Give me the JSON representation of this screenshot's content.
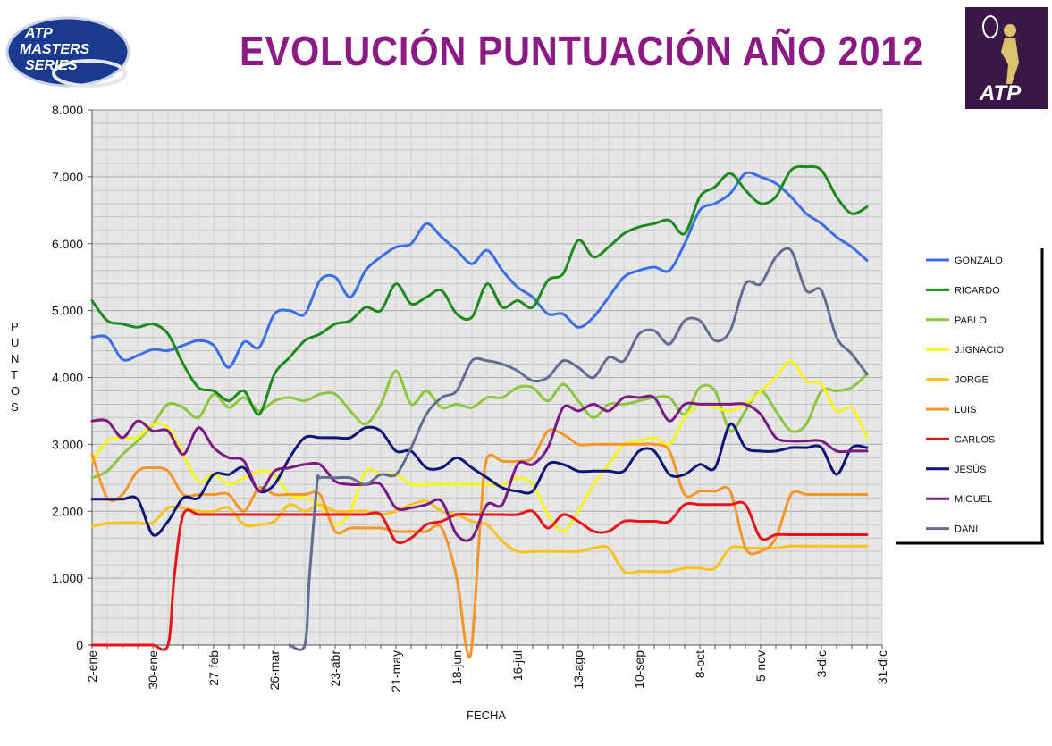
{
  "chart_data": {
    "type": "line",
    "title": "EVOLUCIÓN PUNTUACIÓN AÑO 2012",
    "xlabel": "FECHA",
    "ylabel": "PUNTOS",
    "ylim": [
      0,
      8000
    ],
    "yticks": [
      0,
      1000,
      2000,
      3000,
      4000,
      5000,
      6000,
      7000,
      8000
    ],
    "ytick_labels": [
      "0",
      "1.000",
      "2.000",
      "3.000",
      "4.000",
      "5.000",
      "6.000",
      "7.000",
      "8.000"
    ],
    "xlim": [
      0,
      52
    ],
    "categories": [
      "2-ene",
      "30-ene",
      "27-feb",
      "26-mar",
      "23-abr",
      "21-may",
      "18-jun",
      "16-jul",
      "13-ago",
      "10-sep",
      "8-oct",
      "5-nov",
      "3-dic",
      "31-dic"
    ],
    "grid": true,
    "legend_position": "right",
    "series": [
      {
        "name": "GONZALO",
        "color": "#3a6fe8",
        "x": [
          0,
          1,
          2,
          3,
          4,
          5,
          6,
          7,
          8,
          9,
          10,
          11,
          12,
          13,
          14,
          15,
          16,
          17,
          18,
          19,
          20,
          21,
          22,
          23,
          24,
          25,
          26,
          27,
          28,
          29,
          30,
          31,
          32,
          33,
          34,
          35,
          36,
          37,
          38,
          39,
          40,
          41,
          42,
          43,
          44,
          45,
          46,
          47,
          48,
          49,
          50,
          51
        ],
        "values": [
          4600,
          4600,
          4270,
          4330,
          4420,
          4400,
          4480,
          4550,
          4480,
          4150,
          4530,
          4450,
          4950,
          5000,
          4950,
          5450,
          5500,
          5200,
          5600,
          5800,
          5950,
          6000,
          6300,
          6100,
          5900,
          5700,
          5900,
          5600,
          5350,
          5200,
          4950,
          4950,
          4750,
          4900,
          5200,
          5500,
          5600,
          5650,
          5600,
          6000,
          6500,
          6600,
          6750,
          7050,
          7000,
          6900,
          6700,
          6450,
          6300,
          6100,
          5950,
          5750
        ]
      },
      {
        "name": "RICARDO",
        "color": "#1e8a1e",
        "x": [
          0,
          1,
          2,
          3,
          4,
          5,
          6,
          7,
          8,
          9,
          10,
          11,
          12,
          13,
          14,
          15,
          16,
          17,
          18,
          19,
          20,
          21,
          22,
          23,
          24,
          25,
          26,
          27,
          28,
          29,
          30,
          31,
          32,
          33,
          34,
          35,
          36,
          37,
          38,
          39,
          40,
          41,
          42,
          43,
          44,
          45,
          46,
          47,
          48,
          49,
          50,
          51
        ],
        "values": [
          5150,
          4850,
          4800,
          4750,
          4800,
          4650,
          4200,
          3850,
          3800,
          3650,
          3800,
          3450,
          4050,
          4300,
          4550,
          4650,
          4800,
          4850,
          5050,
          5000,
          5400,
          5100,
          5200,
          5300,
          4950,
          4900,
          5400,
          5050,
          5150,
          5050,
          5450,
          5550,
          6050,
          5800,
          5950,
          6150,
          6250,
          6300,
          6350,
          6150,
          6700,
          6850,
          7050,
          6800,
          6600,
          6700,
          7100,
          7150,
          7100,
          6700,
          6450,
          6550
        ]
      },
      {
        "name": "PABLO",
        "color": "#8cc63e",
        "x": [
          0,
          1,
          2,
          3,
          4,
          5,
          6,
          7,
          8,
          9,
          10,
          11,
          12,
          13,
          14,
          15,
          16,
          17,
          18,
          19,
          20,
          21,
          22,
          23,
          24,
          25,
          26,
          27,
          28,
          29,
          30,
          31,
          32,
          33,
          34,
          35,
          36,
          37,
          38,
          39,
          40,
          41,
          42,
          43,
          44,
          45,
          46,
          47,
          48,
          49,
          50,
          51
        ],
        "values": [
          2500,
          2600,
          2850,
          3050,
          3300,
          3600,
          3550,
          3400,
          3750,
          3550,
          3700,
          3500,
          3650,
          3700,
          3650,
          3750,
          3750,
          3500,
          3300,
          3600,
          4100,
          3600,
          3800,
          3550,
          3600,
          3550,
          3700,
          3700,
          3850,
          3850,
          3650,
          3900,
          3650,
          3400,
          3600,
          3600,
          3650,
          3700,
          3700,
          3450,
          3850,
          3800,
          3200,
          3500,
          3800,
          3500,
          3200,
          3300,
          3800,
          3800,
          3850,
          4050
        ]
      },
      {
        "name": "J.IGNACIO",
        "color": "#f5f51e",
        "x": [
          0,
          1,
          2,
          3,
          4,
          5,
          6,
          7,
          8,
          9,
          10,
          11,
          12,
          13,
          14,
          15,
          16,
          17,
          18,
          19,
          20,
          21,
          22,
          23,
          24,
          25,
          26,
          27,
          28,
          29,
          30,
          31,
          32,
          33,
          34,
          35,
          36,
          37,
          38,
          39,
          40,
          41,
          42,
          43,
          44,
          45,
          46,
          47,
          48,
          49,
          50,
          51
        ],
        "values": [
          2750,
          3050,
          3100,
          3100,
          3300,
          3250,
          2850,
          2450,
          2550,
          2400,
          2500,
          2600,
          2550,
          2250,
          2200,
          2100,
          1800,
          2000,
          2600,
          2550,
          2550,
          2400,
          2400,
          2400,
          2400,
          2400,
          2400,
          2400,
          2500,
          2400,
          1950,
          1700,
          2000,
          2400,
          2700,
          3000,
          3050,
          3100,
          3000,
          3400,
          3600,
          3550,
          3500,
          3600,
          3800,
          4000,
          4250,
          3950,
          3900,
          3500,
          3550,
          3100
        ]
      },
      {
        "name": "JORGE",
        "color": "#f7c21b",
        "x": [
          0,
          1,
          2,
          3,
          4,
          5,
          6,
          7,
          8,
          9,
          10,
          11,
          12,
          13,
          14,
          15,
          16,
          17,
          18,
          19,
          20,
          21,
          22,
          23,
          24,
          25,
          26,
          27,
          28,
          29,
          30,
          31,
          32,
          33,
          34,
          35,
          36,
          37,
          38,
          39,
          40,
          41,
          42,
          43,
          44,
          45,
          46,
          47,
          48,
          49,
          50,
          51
        ],
        "values": [
          1780,
          1820,
          1830,
          1830,
          1830,
          2050,
          2050,
          2000,
          2000,
          2050,
          1800,
          1800,
          1850,
          2100,
          2000,
          2100,
          2000,
          2000,
          2000,
          1950,
          2000,
          2100,
          2150,
          2000,
          1950,
          1850,
          1800,
          1550,
          1400,
          1400,
          1400,
          1400,
          1400,
          1450,
          1450,
          1100,
          1100,
          1100,
          1100,
          1150,
          1150,
          1150,
          1450,
          1450,
          1450,
          1450,
          1480,
          1480,
          1480,
          1480,
          1480,
          1480
        ]
      },
      {
        "name": "LUIS",
        "color": "#f4962a",
        "x": [
          0,
          1,
          2,
          3,
          4,
          5,
          6,
          7,
          8,
          9,
          10,
          11,
          12,
          13,
          14,
          15,
          16,
          17,
          18,
          19,
          20,
          21,
          22,
          23,
          24,
          24.6,
          25,
          25.6,
          26,
          27,
          28,
          29,
          30,
          31,
          32,
          33,
          34,
          35,
          36,
          37,
          38,
          39,
          40,
          41,
          42,
          43,
          44,
          45,
          46,
          47,
          48,
          49,
          50,
          51
        ],
        "values": [
          2850,
          2200,
          2250,
          2600,
          2650,
          2600,
          2250,
          2250,
          2250,
          2250,
          2000,
          2350,
          2250,
          2250,
          2250,
          2250,
          1700,
          1750,
          1750,
          1750,
          1700,
          1700,
          1700,
          1750,
          1000,
          0,
          0,
          2000,
          2800,
          2750,
          2750,
          2800,
          3200,
          3150,
          3000,
          3000,
          3000,
          3000,
          3000,
          3000,
          2900,
          2250,
          2300,
          2300,
          2300,
          1450,
          1400,
          1600,
          2250,
          2250,
          2250,
          2250,
          2250,
          2250
        ]
      },
      {
        "name": "CARLOS",
        "color": "#e8141a",
        "x": [
          0,
          1,
          2,
          3,
          4,
          5,
          5.4,
          6,
          7,
          8,
          9,
          10,
          11,
          12,
          13,
          14,
          15,
          16,
          17,
          18,
          19,
          20,
          21,
          22,
          23,
          24,
          25,
          26,
          27,
          28,
          29,
          30,
          31,
          32,
          33,
          34,
          35,
          36,
          37,
          38,
          39,
          40,
          41,
          42,
          43,
          44,
          45,
          46,
          47,
          48,
          49,
          50,
          51
        ],
        "values": [
          0,
          0,
          0,
          0,
          0,
          0,
          1000,
          1950,
          1950,
          1950,
          1950,
          1950,
          1950,
          1950,
          1950,
          1950,
          1950,
          1950,
          1950,
          1950,
          1950,
          1550,
          1600,
          1800,
          1850,
          1950,
          1950,
          1950,
          1950,
          1950,
          2000,
          1750,
          1950,
          1850,
          1700,
          1700,
          1850,
          1850,
          1850,
          1850,
          2100,
          2100,
          2100,
          2100,
          2100,
          1600,
          1650,
          1650,
          1650,
          1650,
          1650,
          1650,
          1650
        ]
      },
      {
        "name": "JESÚS",
        "color": "#0d1577",
        "x": [
          0,
          1,
          2,
          3,
          4,
          5,
          6,
          7,
          8,
          9,
          10,
          11,
          12,
          13,
          14,
          15,
          16,
          17,
          18,
          19,
          20,
          21,
          22,
          23,
          24,
          25,
          26,
          27,
          28,
          29,
          30,
          31,
          32,
          33,
          34,
          35,
          36,
          37,
          38,
          39,
          40,
          41,
          42,
          43,
          44,
          45,
          46,
          47,
          48,
          49,
          50,
          51
        ],
        "values": [
          2180,
          2180,
          2180,
          2180,
          1650,
          1850,
          2200,
          2200,
          2550,
          2550,
          2650,
          2300,
          2400,
          2800,
          3100,
          3100,
          3100,
          3100,
          3250,
          3200,
          2900,
          2900,
          2650,
          2650,
          2800,
          2650,
          2500,
          2350,
          2300,
          2300,
          2700,
          2700,
          2600,
          2600,
          2600,
          2600,
          2900,
          2900,
          2550,
          2550,
          2700,
          2650,
          3300,
          2950,
          2900,
          2900,
          2950,
          2950,
          2950,
          2550,
          2950,
          2950
        ]
      },
      {
        "name": "MIGUEL",
        "color": "#7b1a85",
        "x": [
          0,
          1,
          2,
          3,
          4,
          5,
          6,
          7,
          8,
          9,
          10,
          11,
          12,
          13,
          14,
          15,
          16,
          17,
          18,
          19,
          20,
          21,
          22,
          23,
          24,
          25,
          26,
          27,
          28,
          29,
          30,
          31,
          32,
          33,
          34,
          35,
          36,
          37,
          38,
          39,
          40,
          41,
          42,
          43,
          44,
          45,
          46,
          47,
          48,
          49,
          50,
          51
        ],
        "values": [
          3350,
          3350,
          3100,
          3350,
          3200,
          3200,
          2850,
          3250,
          2950,
          2800,
          2750,
          2300,
          2600,
          2650,
          2700,
          2700,
          2450,
          2400,
          2400,
          2400,
          2050,
          2050,
          2100,
          2150,
          1650,
          1600,
          2100,
          2100,
          2700,
          2700,
          2950,
          3550,
          3500,
          3600,
          3500,
          3700,
          3700,
          3700,
          3350,
          3600,
          3600,
          3600,
          3600,
          3600,
          3450,
          3100,
          3050,
          3050,
          3050,
          2900,
          2900,
          2900
        ]
      },
      {
        "name": "DANI",
        "color": "#666b91",
        "x": [
          13,
          14,
          14.3,
          14.8,
          15,
          16,
          17,
          18,
          19,
          20,
          21,
          22,
          23,
          24,
          25,
          26,
          27,
          28,
          29,
          30,
          31,
          32,
          33,
          34,
          35,
          36,
          37,
          38,
          39,
          40,
          41,
          42,
          43,
          44,
          45,
          46,
          47,
          48,
          49,
          50,
          51
        ],
        "values": [
          0,
          0,
          1000,
          2400,
          2500,
          2500,
          2500,
          2400,
          2550,
          2550,
          2950,
          3450,
          3700,
          3800,
          4250,
          4250,
          4200,
          4100,
          3950,
          4000,
          4250,
          4150,
          4000,
          4300,
          4250,
          4650,
          4700,
          4500,
          4850,
          4850,
          4550,
          4700,
          5400,
          5400,
          5800,
          5900,
          5300,
          5300,
          4600,
          4350,
          4050
        ]
      }
    ]
  }
}
